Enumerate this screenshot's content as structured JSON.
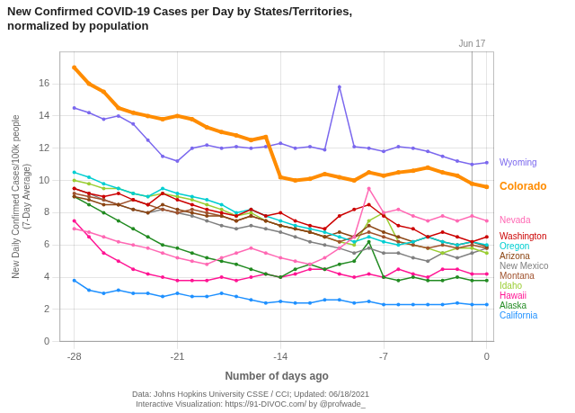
{
  "chart_data": {
    "type": "line",
    "title": [
      "New Confirmed COVID-19 Cases per Day by States/Territories,",
      "normalized by population"
    ],
    "x_label": "Number of days ago",
    "y_label": "New Daily Confirmed Cases/100k people\n(7-Day Average)",
    "x": [
      -28,
      -27,
      -26,
      -25,
      -24,
      -23,
      -22,
      -21,
      -20,
      -19,
      -18,
      -17,
      -16,
      -15,
      -14,
      -13,
      -12,
      -11,
      -10,
      -9,
      -8,
      -7,
      -6,
      -5,
      -4,
      -3,
      -2,
      -1,
      0
    ],
    "series": [
      {
        "name": "California",
        "color": "#1E90FF",
        "values": [
          3.8,
          3.2,
          3.0,
          3.2,
          3.0,
          3.0,
          2.8,
          3.0,
          2.8,
          2.8,
          3.0,
          2.8,
          2.6,
          2.4,
          2.5,
          2.4,
          2.4,
          2.6,
          2.6,
          2.4,
          2.5,
          2.3,
          2.3,
          2.3,
          2.3,
          2.3,
          2.4,
          2.3,
          2.3
        ]
      },
      {
        "name": "Hawaii",
        "color": "#FF1493",
        "values": [
          7.5,
          6.5,
          5.5,
          5.0,
          4.5,
          4.2,
          4.0,
          3.8,
          3.8,
          3.8,
          4.0,
          3.8,
          4.0,
          4.2,
          4.0,
          4.2,
          4.5,
          4.5,
          4.2,
          4.0,
          4.2,
          4.0,
          4.5,
          4.2,
          4.0,
          4.5,
          4.5,
          4.2,
          4.2
        ]
      },
      {
        "name": "Alaska",
        "color": "#228B22",
        "values": [
          9.0,
          8.5,
          8.0,
          7.5,
          7.0,
          6.5,
          6.0,
          5.8,
          5.5,
          5.2,
          5.0,
          4.8,
          4.5,
          4.2,
          4.0,
          4.5,
          4.8,
          4.5,
          4.8,
          5.0,
          6.2,
          4.0,
          3.8,
          4.0,
          3.8,
          3.8,
          4.0,
          3.8,
          3.8
        ]
      },
      {
        "name": "New Mexico",
        "color": "#808080",
        "values": [
          9.5,
          9.2,
          8.8,
          8.5,
          8.2,
          8.0,
          8.2,
          8.0,
          7.8,
          7.5,
          7.2,
          7.0,
          7.2,
          7.0,
          6.8,
          6.5,
          6.2,
          6.0,
          5.8,
          5.5,
          5.8,
          5.5,
          5.5,
          5.2,
          5.0,
          5.5,
          5.2,
          5.5,
          5.8
        ]
      },
      {
        "name": "Idaho",
        "color": "#9ACD32",
        "values": [
          10.0,
          9.8,
          9.5,
          9.5,
          9.2,
          9.0,
          9.2,
          9.0,
          8.8,
          8.5,
          8.2,
          7.8,
          8.0,
          7.5,
          7.2,
          7.0,
          6.8,
          6.5,
          6.2,
          6.0,
          7.5,
          8.0,
          6.2,
          6.0,
          5.8,
          5.5,
          5.8,
          5.8,
          5.5
        ]
      },
      {
        "name": "Montana",
        "color": "#A0522D",
        "values": [
          9.2,
          9.0,
          8.8,
          8.5,
          8.8,
          8.5,
          8.2,
          8.0,
          8.2,
          8.0,
          7.8,
          7.5,
          7.8,
          7.5,
          7.2,
          7.0,
          6.8,
          6.5,
          6.2,
          6.5,
          6.8,
          6.5,
          6.2,
          6.0,
          5.8,
          6.0,
          5.8,
          6.0,
          5.8
        ]
      },
      {
        "name": "Arizona",
        "color": "#8B4513",
        "values": [
          9.0,
          8.8,
          8.5,
          8.5,
          8.2,
          8.0,
          8.5,
          8.2,
          8.0,
          7.8,
          7.8,
          7.5,
          7.8,
          7.5,
          7.2,
          7.0,
          6.8,
          6.5,
          6.8,
          6.5,
          7.2,
          6.8,
          6.5,
          6.2,
          6.5,
          6.2,
          6.0,
          6.2,
          5.9
        ]
      },
      {
        "name": "Oregon",
        "color": "#00CED1",
        "values": [
          10.5,
          10.2,
          9.8,
          9.5,
          9.2,
          9.0,
          9.5,
          9.2,
          9.0,
          8.8,
          8.5,
          8.0,
          8.2,
          7.8,
          7.5,
          7.2,
          7.0,
          6.8,
          6.5,
          6.2,
          6.5,
          6.2,
          6.0,
          6.2,
          6.5,
          6.2,
          6.0,
          6.2,
          6.0
        ]
      },
      {
        "name": "Washington",
        "color": "#CC0000",
        "values": [
          9.5,
          9.2,
          9.0,
          9.2,
          8.8,
          8.5,
          9.2,
          8.8,
          8.5,
          8.2,
          8.0,
          7.8,
          8.2,
          7.8,
          8.0,
          7.5,
          7.2,
          7.0,
          7.8,
          8.2,
          8.5,
          7.8,
          7.2,
          7.0,
          6.5,
          6.8,
          6.5,
          6.2,
          6.5
        ]
      },
      {
        "name": "Nevada",
        "color": "#FF69B4",
        "values": [
          7.0,
          6.8,
          6.5,
          6.2,
          6.0,
          5.8,
          5.5,
          5.2,
          5.0,
          4.8,
          5.2,
          5.5,
          5.8,
          5.5,
          5.2,
          5.0,
          4.8,
          5.2,
          5.8,
          6.5,
          9.5,
          8.0,
          8.2,
          7.8,
          7.5,
          7.8,
          7.5,
          7.8,
          7.5
        ]
      },
      {
        "name": "Wyoming",
        "color": "#7B68EE",
        "values": [
          14.5,
          14.2,
          13.8,
          14.0,
          13.5,
          12.5,
          11.5,
          11.2,
          12.0,
          12.2,
          12.0,
          12.1,
          12.0,
          12.1,
          12.3,
          12.0,
          12.1,
          11.9,
          15.8,
          12.1,
          12.0,
          11.8,
          12.1,
          12.0,
          11.8,
          11.5,
          11.2,
          11.0,
          11.1
        ]
      },
      {
        "name": "Colorado",
        "color": "#FF8C00",
        "values": [
          17.0,
          16.0,
          15.5,
          14.5,
          14.2,
          14.0,
          13.8,
          14.0,
          13.8,
          13.3,
          13.0,
          12.8,
          12.5,
          12.7,
          10.2,
          10.0,
          10.1,
          10.4,
          10.2,
          10.0,
          10.5,
          10.3,
          10.5,
          10.6,
          10.8,
          10.5,
          10.3,
          9.8,
          9.6
        ]
      }
    ],
    "annotations": [
      {
        "text": "Jun 17",
        "x": -1
      },
      {
        "text": "Data: Johns Hopkins University CSSE / CCI; Updated: 06/18/2021"
      },
      {
        "text": "Interactive Visualization: https://91-DIVOC.com/ by @profwade_"
      }
    ],
    "xlim": [
      -29,
      0.5
    ],
    "xticks": [
      -28,
      -21,
      -14,
      -7,
      0
    ],
    "ylim": [
      0,
      18
    ],
    "yticks": [
      0,
      2,
      4,
      6,
      8,
      10,
      12,
      14,
      16
    ],
    "grid": true,
    "marker": "circle"
  }
}
